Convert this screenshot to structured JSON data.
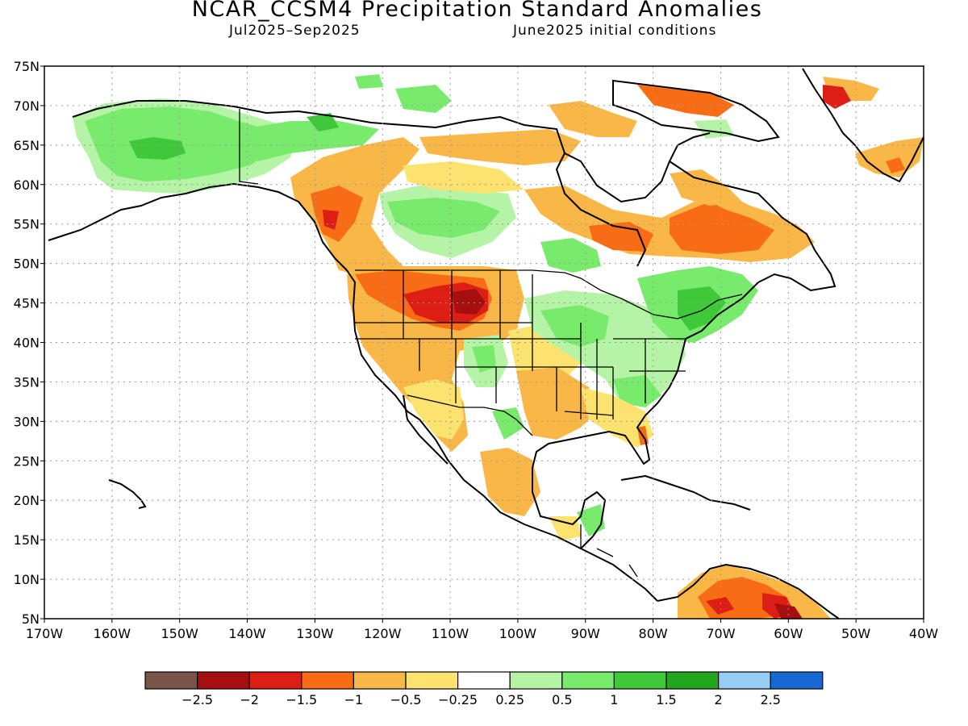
{
  "title": "NCAR_CCSM4 Precipitation Standard Anomalies",
  "subtitle_left": "Jul2025–Sep2025",
  "subtitle_right": "June2025 initial conditions",
  "axes": {
    "lat_labels": [
      "75N",
      "70N",
      "65N",
      "60N",
      "55N",
      "50N",
      "45N",
      "40N",
      "35N",
      "30N",
      "25N",
      "20N",
      "15N",
      "10N",
      "5N"
    ],
    "lon_labels": [
      "170W",
      "160W",
      "150W",
      "140W",
      "130W",
      "120W",
      "110W",
      "100W",
      "90W",
      "80W",
      "70W",
      "60W",
      "50W",
      "40W"
    ],
    "lat_range": [
      5,
      75
    ],
    "lon_range": [
      -170,
      -40
    ],
    "grid": true
  },
  "colorbar": {
    "colors": [
      "#7b5548",
      "#a50f0f",
      "#dc1e14",
      "#f76c15",
      "#f9b748",
      "#fce36f",
      "#ffffff",
      "#b5f3a6",
      "#78ea6c",
      "#3ec83a",
      "#22a61e",
      "#96cdf5",
      "#1868d3"
    ],
    "labels": [
      "−2.5",
      "−2",
      "−1.5",
      "−1",
      "−0.5",
      "−0.25",
      "0.25",
      "0.5",
      "1",
      "1.5",
      "2",
      "2.5"
    ]
  },
  "palette": {
    "dry_light": "#fce36f",
    "dry_mid": "#f9b748",
    "dry_strong": "#f76c15",
    "dry_vstrong": "#dc1e14",
    "dry_extreme": "#a50f0f",
    "wet_light": "#b5f3a6",
    "wet_mid": "#78ea6c",
    "wet_strong": "#3ec83a"
  }
}
